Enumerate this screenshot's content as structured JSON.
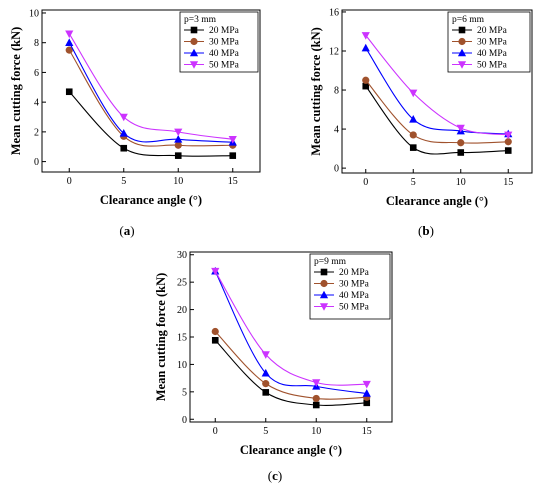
{
  "chart_data": [
    {
      "type": "scatter",
      "id": "a",
      "caption": "a",
      "legend_title": "p=3 mm",
      "xlabel": "Clearance angle (°)",
      "ylabel": "Mean cutting force (kN)",
      "x": [
        0,
        5,
        10,
        15
      ],
      "xticks": [
        0,
        5,
        10,
        15
      ],
      "xlim": [
        -2.5,
        17.5
      ],
      "yticks": [
        0,
        2,
        4,
        6,
        8,
        10
      ],
      "ylim": [
        -0.7,
        10.2
      ],
      "legend_position": "top-right",
      "series": [
        {
          "name": "20 MPa",
          "color": "#000000",
          "marker": "square",
          "values": [
            4.7,
            0.9,
            0.4,
            0.4
          ]
        },
        {
          "name": "30 MPa",
          "color": "#a0522d",
          "marker": "circle",
          "values": [
            7.5,
            1.7,
            1.1,
            1.1
          ]
        },
        {
          "name": "40 MPa",
          "color": "#0000ff",
          "marker": "triangle-up",
          "values": [
            8.0,
            1.9,
            1.5,
            1.3
          ]
        },
        {
          "name": "50 MPa",
          "color": "#cc33ff",
          "marker": "triangle-down",
          "values": [
            8.6,
            3.0,
            2.0,
            1.5
          ]
        }
      ]
    },
    {
      "type": "scatter",
      "id": "b",
      "caption": "b",
      "legend_title": "p=6 mm",
      "xlabel": "Clearance angle (°)",
      "ylabel": "Mean cutting force (kN)",
      "x": [
        0,
        5,
        10,
        15
      ],
      "xticks": [
        0,
        5,
        10,
        15
      ],
      "xlim": [
        -2.5,
        17.5
      ],
      "yticks": [
        0,
        4,
        8,
        12,
        16
      ],
      "ylim": [
        -0.5,
        16.2
      ],
      "legend_position": "top-right",
      "series": [
        {
          "name": "20 MPa",
          "color": "#000000",
          "marker": "square",
          "values": [
            8.4,
            2.1,
            1.6,
            1.8
          ]
        },
        {
          "name": "30 MPa",
          "color": "#a0522d",
          "marker": "circle",
          "values": [
            9.0,
            3.4,
            2.6,
            2.7
          ]
        },
        {
          "name": "40 MPa",
          "color": "#0000ff",
          "marker": "triangle-up",
          "values": [
            12.3,
            5.0,
            3.8,
            3.5
          ]
        },
        {
          "name": "50 MPa",
          "color": "#cc33ff",
          "marker": "triangle-down",
          "values": [
            13.6,
            7.7,
            4.1,
            3.4
          ]
        }
      ]
    },
    {
      "type": "scatter",
      "id": "c",
      "caption": "c",
      "legend_title": "p=9 mm",
      "xlabel": "Clearance angle (°)",
      "ylabel": "Mean cutting force (kN)",
      "x": [
        0,
        5,
        10,
        15
      ],
      "xticks": [
        0,
        5,
        10,
        15
      ],
      "xlim": [
        -2.5,
        17.5
      ],
      "yticks": [
        0,
        5,
        10,
        15,
        20,
        25,
        30
      ],
      "ylim": [
        -0.5,
        30.5
      ],
      "legend_position": "top-right",
      "series": [
        {
          "name": "20 MPa",
          "color": "#000000",
          "marker": "square",
          "values": [
            14.4,
            4.9,
            2.6,
            3.0
          ]
        },
        {
          "name": "30 MPa",
          "color": "#a0522d",
          "marker": "circle",
          "values": [
            16.0,
            6.5,
            3.8,
            4.0
          ]
        },
        {
          "name": "40 MPa",
          "color": "#0000ff",
          "marker": "triangle-up",
          "values": [
            27.0,
            8.4,
            6.0,
            4.7
          ]
        },
        {
          "name": "50 MPa",
          "color": "#cc33ff",
          "marker": "triangle-down",
          "values": [
            27.0,
            11.8,
            6.7,
            6.4
          ]
        }
      ]
    }
  ]
}
